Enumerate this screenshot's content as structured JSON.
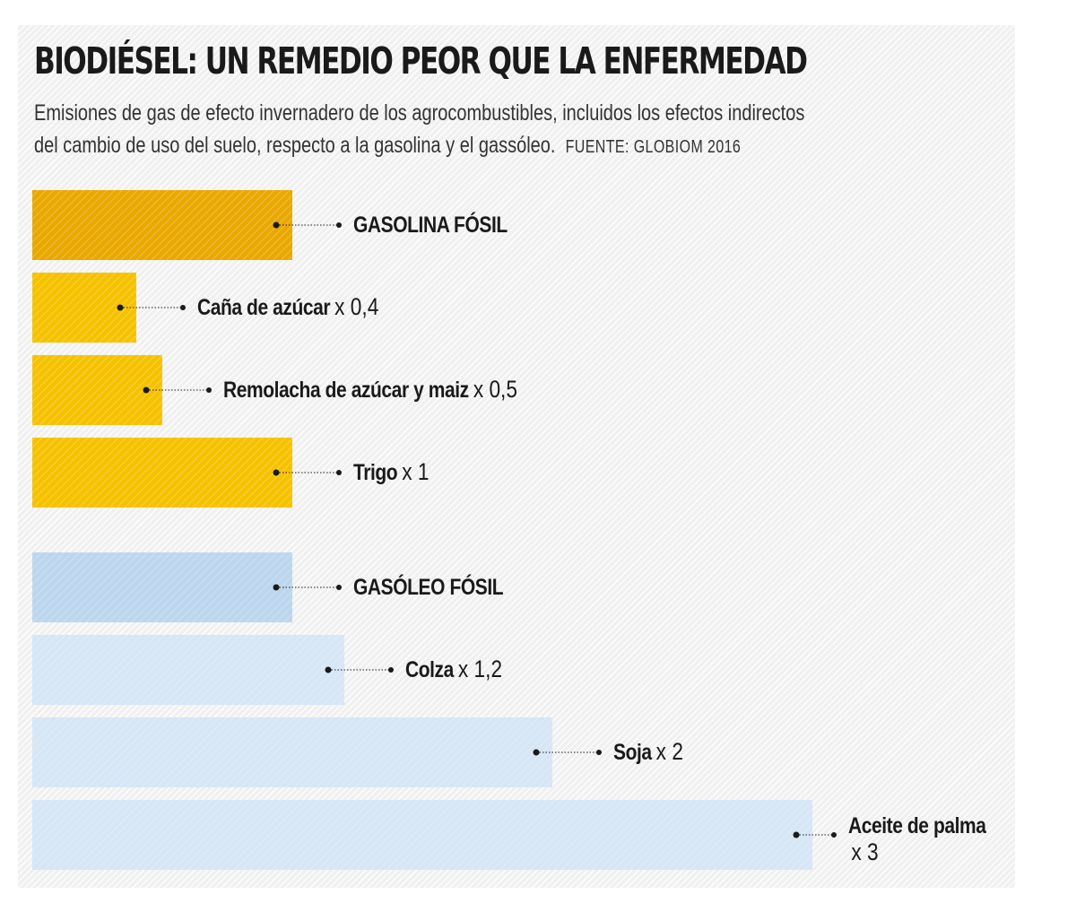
{
  "header": {
    "title": "BIODIÉSEL: UN REMEDIO PEOR QUE LA ENFERMEDAD",
    "subtitle_line1": "Emisiones de gas de efecto invernadero de los agrocombustibles, incluidos los efectos indirectos",
    "subtitle_line2": "del cambio de uso del suelo, respecto a la gasolina y el gassóleo.",
    "source": "FUENTE: GLOBIOM 2016"
  },
  "colors": {
    "gasoline_fossil": "#e9a800",
    "gasoline_bio": "#f6c200",
    "diesel_fossil": "#bcd6ee",
    "diesel_bio": "#d6e6f5",
    "text": "#1a1a1a"
  },
  "chart_data": {
    "type": "bar",
    "orientation": "horizontal",
    "unit": "multiple of fossil fuel emissions",
    "xlim": [
      0,
      3
    ],
    "groups": [
      {
        "group": "gasolina",
        "bars": [
          {
            "name": "GASOLINA FÓSIL",
            "multiplier_text": "",
            "value": 1,
            "color": "#e9a800"
          },
          {
            "name": "Caña de azúcar",
            "multiplier_text": "x 0,4",
            "value": 0.4,
            "color": "#f6c200"
          },
          {
            "name": "Remolacha de azúcar y maiz",
            "multiplier_text": "x 0,5",
            "value": 0.5,
            "color": "#f6c200"
          },
          {
            "name": "Trigo",
            "multiplier_text": "x 1",
            "value": 1,
            "color": "#f6c200"
          }
        ]
      },
      {
        "group": "gasóleo",
        "bars": [
          {
            "name": "GASÓLEO FÓSIL",
            "multiplier_text": "",
            "value": 1,
            "color": "#bcd6ee"
          },
          {
            "name": "Colza",
            "multiplier_text": "x 1,2",
            "value": 1.2,
            "color": "#d6e6f5"
          },
          {
            "name": "Soja",
            "multiplier_text": "x 2",
            "value": 2,
            "color": "#d6e6f5"
          },
          {
            "name": "Aceite de palma",
            "multiplier_text": "x 3",
            "value": 3,
            "color": "#d6e6f5"
          }
        ]
      }
    ]
  }
}
